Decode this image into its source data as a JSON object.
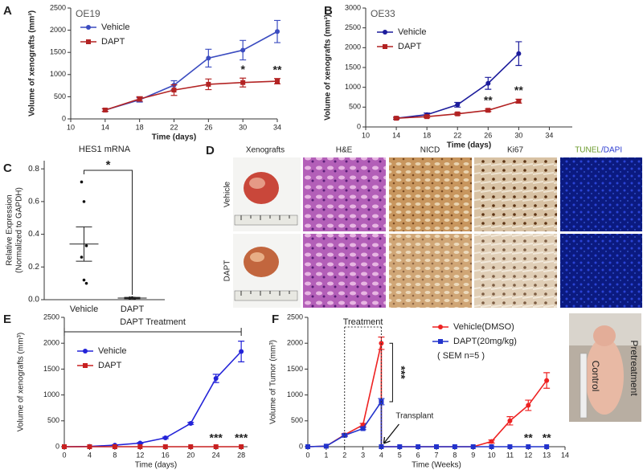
{
  "figure_d": {
    "panel": "D",
    "columns": [
      "Xenografts",
      "H&E",
      "NICD",
      "Ki67"
    ],
    "tunel": "TUNEL",
    "dapi": "/DAPI",
    "rows": [
      "Vehicle",
      "DAPT"
    ]
  },
  "chart_data": [
    {
      "panel": "A",
      "type": "line",
      "title": "OE19",
      "xlabel": "Time (days)",
      "ylabel": "Volume of xenografts (mm³)",
      "x": [
        14,
        18,
        22,
        26,
        30,
        34
      ],
      "xlim": [
        10,
        34
      ],
      "xticks": [
        10,
        14,
        18,
        22,
        26,
        30,
        34
      ],
      "ylim": [
        0,
        2500
      ],
      "yticks": [
        0,
        500,
        1000,
        1500,
        2000,
        2500
      ],
      "legend": "top-left",
      "series": [
        {
          "name": "Vehicle",
          "color": "#3b4cc0",
          "marker": "circle",
          "values": [
            200,
            430,
            760,
            1370,
            1550,
            1970
          ],
          "errors": [
            30,
            50,
            100,
            200,
            220,
            250
          ]
        },
        {
          "name": "DAPT",
          "color": "#b32424",
          "marker": "square",
          "values": [
            200,
            450,
            650,
            780,
            820,
            850
          ],
          "errors": [
            30,
            50,
            120,
            120,
            100,
            60
          ]
        }
      ],
      "sig_marks": [
        {
          "text": "*",
          "x": 30
        },
        {
          "text": "**",
          "x": 34
        }
      ]
    },
    {
      "panel": "B",
      "type": "line",
      "title": "OE33",
      "xlabel": "Time (days)",
      "ylabel": "Volume of xenografts (mm³)",
      "x": [
        14,
        18,
        22,
        26,
        30
      ],
      "xlim": [
        10,
        37
      ],
      "xticks": [
        10,
        14,
        18,
        22,
        26,
        30,
        34
      ],
      "ylim": [
        0,
        3000
      ],
      "yticks": [
        0,
        500,
        1000,
        1500,
        2000,
        2500,
        3000
      ],
      "legend": "top-left",
      "series": [
        {
          "name": "Vehicle",
          "color": "#1c1c9c",
          "marker": "circle",
          "values": [
            220,
            310,
            560,
            1100,
            1850
          ],
          "errors": [
            30,
            40,
            60,
            150,
            300
          ]
        },
        {
          "name": "DAPT",
          "color": "#b22222",
          "marker": "square",
          "values": [
            220,
            260,
            330,
            420,
            650
          ],
          "errors": [
            20,
            30,
            30,
            30,
            50
          ]
        }
      ],
      "sig_marks": [
        {
          "text": "**",
          "x": 26
        },
        {
          "text": "**",
          "x": 30
        }
      ]
    },
    {
      "panel": "C",
      "type": "dot",
      "title": "HES1 mRNA",
      "ylabel": "Relative Expression",
      "ylabel2": "(Normalized to GAPDH)",
      "categories": [
        "Vehicle",
        "DAPT"
      ],
      "points": [
        [
          0.72,
          0.6,
          0.33,
          0.26,
          0.12,
          0.1
        ],
        [
          0.01,
          0.012,
          0.008,
          0.01,
          0.011,
          0.009
        ]
      ],
      "mean": [
        0.34,
        0.01
      ],
      "sem": [
        0.105,
        0.004
      ],
      "ylim": [
        0,
        0.85
      ],
      "yticks": [
        {
          "value": 0,
          "label": "0.0"
        },
        {
          "value": 0.2,
          "label": "0.2"
        },
        {
          "value": 0.4,
          "label": "0.4"
        },
        {
          "value": 0.6,
          "label": "0.6"
        },
        {
          "value": 0.8,
          "label": "0.8"
        }
      ],
      "sig": "*"
    },
    {
      "panel": "E",
      "type": "line",
      "xlabel": "Time (days)",
      "ylabel": "Volume of xenografts (mm³)",
      "x": [
        0,
        4,
        8,
        12,
        16,
        20,
        24,
        28
      ],
      "xlim": [
        0,
        29
      ],
      "xticks": [
        0,
        4,
        8,
        12,
        16,
        20,
        24,
        28
      ],
      "ylim": [
        0,
        2500
      ],
      "yticks": [
        0,
        500,
        1000,
        1500,
        2000,
        2500
      ],
      "legend": "top-left",
      "series": [
        {
          "name": "Vehicle",
          "color": "#2323d8",
          "marker": "circle",
          "values": [
            0,
            5,
            30,
            70,
            170,
            450,
            1320,
            1840
          ],
          "errors": [
            0,
            0,
            5,
            10,
            15,
            20,
            80,
            200
          ]
        },
        {
          "name": "DAPT",
          "color": "#c82020",
          "marker": "square",
          "values": [
            0,
            0,
            0,
            0,
            0,
            0,
            0,
            0
          ],
          "errors": [
            0,
            0,
            0,
            0,
            0,
            0,
            0,
            0
          ]
        }
      ],
      "span_annotation": {
        "text": "DAPT Treatment",
        "span": [
          0,
          28
        ]
      },
      "sig_marks": [
        {
          "text": "***",
          "x": 24
        },
        {
          "text": "***",
          "x": 28
        }
      ]
    },
    {
      "panel": "F",
      "type": "line",
      "xlabel": "Time (Weeks)",
      "ylabel": "Volume of Tumor (mm³)",
      "x": [
        0,
        1,
        2,
        3,
        4,
        4,
        5,
        6,
        7,
        8,
        9,
        10,
        11,
        12,
        13
      ],
      "xlim": [
        0,
        14
      ],
      "xticks": [
        0,
        1,
        2,
        3,
        4,
        5,
        6,
        7,
        8,
        9,
        10,
        11,
        12,
        13,
        14
      ],
      "ylim": [
        0,
        2500
      ],
      "yticks": [
        0,
        500,
        1000,
        1500,
        2000,
        2500
      ],
      "legend": "top-right",
      "series": [
        {
          "name": "Vehicle(DMSO)",
          "color": "#ee2222",
          "marker": "circle",
          "values": [
            0,
            10,
            230,
            420,
            2000,
            0,
            0,
            0,
            0,
            0,
            0,
            100,
            500,
            800,
            1280
          ],
          "errors": [
            0,
            0,
            20,
            30,
            120,
            0,
            0,
            0,
            0,
            0,
            0,
            30,
            80,
            100,
            150
          ]
        },
        {
          "name": "DAPT(20mg/kg)",
          "color": "#2233cc",
          "marker": "square",
          "values": [
            0,
            10,
            220,
            350,
            870,
            0,
            0,
            0,
            0,
            0,
            0,
            0,
            0,
            0,
            0
          ],
          "errors": [
            0,
            0,
            20,
            20,
            60,
            0,
            0,
            0,
            0,
            0,
            0,
            0,
            0,
            0,
            0
          ]
        }
      ],
      "legend_note": "( SEM n=5 )",
      "span_annotation": {
        "text": "Treatment",
        "span": [
          2,
          4
        ]
      },
      "arrow_annotation": {
        "text": "Transplant",
        "x": 4
      },
      "bracket": {
        "text": "***",
        "x": 4
      },
      "sig_marks": [
        {
          "text": "**",
          "x": 12
        },
        {
          "text": "**",
          "x": 13
        }
      ],
      "photo_labels": [
        "Control",
        "Pretreatment"
      ]
    }
  ]
}
